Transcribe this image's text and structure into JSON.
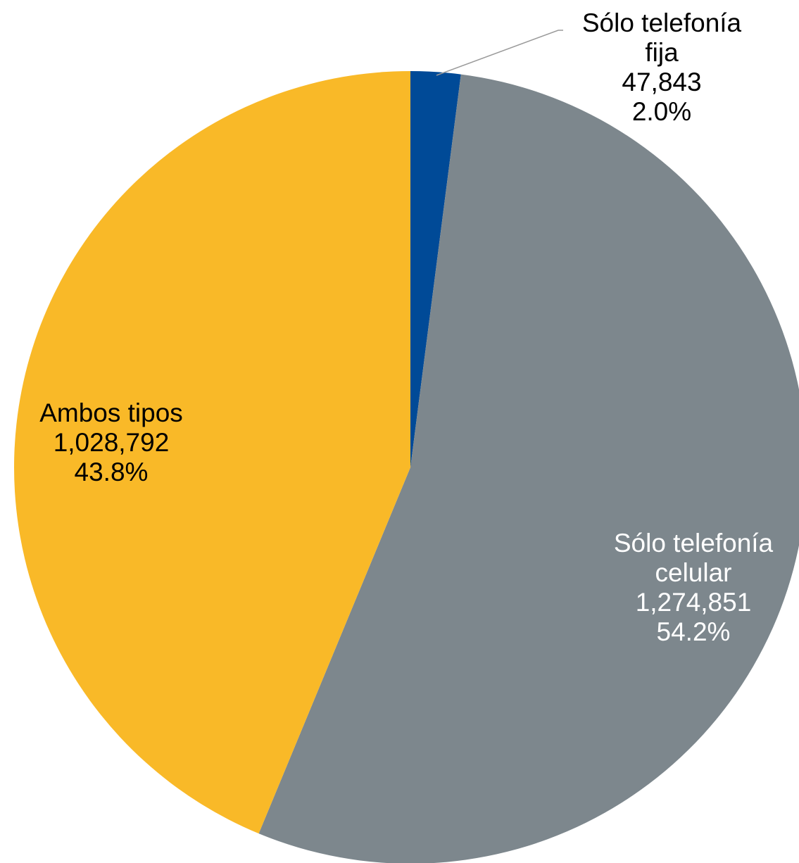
{
  "chart_data": {
    "type": "pie",
    "start_angle": "12 o'clock",
    "direction": "clockwise",
    "slices": [
      {
        "name_lines": [
          "Sólo telefonía",
          "fija"
        ],
        "value": 47843,
        "value_label": "47,843",
        "percent": 2.0,
        "percent_label": "2.0%",
        "color": "#004a97",
        "label_color": "#000000"
      },
      {
        "name_lines": [
          "Sólo telefonía",
          "celular"
        ],
        "value": 1274851,
        "value_label": "1,274,851",
        "percent": 54.2,
        "percent_label": "54.2%",
        "color": "#7d878d",
        "label_color": "#ffffff"
      },
      {
        "name_lines": [
          "Ambos tipos"
        ],
        "value": 1028792,
        "value_label": "1,028,792",
        "percent": 43.8,
        "percent_label": "43.8%",
        "color": "#f9b928",
        "label_color": "#000000"
      }
    ],
    "leader_line_color": "#9a9a9a"
  }
}
